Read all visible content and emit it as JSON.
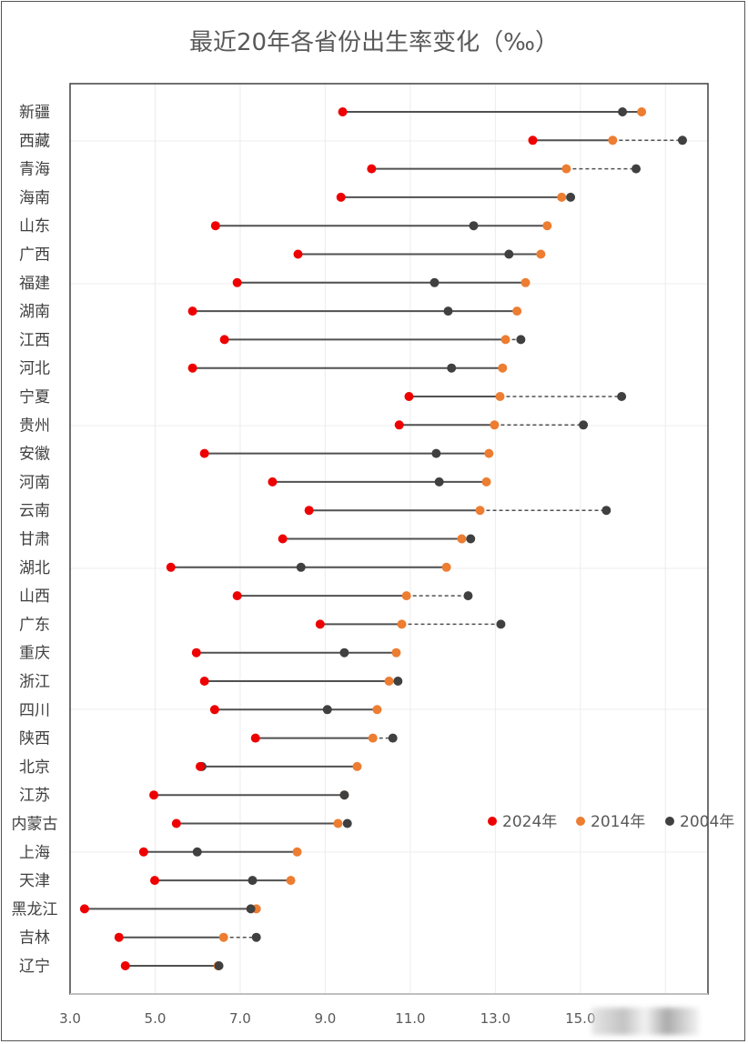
{
  "chart_data": {
    "type": "dot-range",
    "title": "最近20年各省份出生率变化（‰）",
    "xlim": [
      3.0,
      18.0
    ],
    "x_ticks": [
      "3.0",
      "5.0",
      "7.0",
      "9.0",
      "11.0",
      "13.0",
      "15.0"
    ],
    "grid": true,
    "legend_placement": "right",
    "colors": {
      "2024年": "#ee0000",
      "2014年": "#ed7d31",
      "2004年": "#404040",
      "line": "#505050"
    },
    "legend": [
      "2024年",
      "2014年",
      "2004年"
    ],
    "categories": [
      "新疆",
      "西藏",
      "青海",
      "海南",
      "山东",
      "广西",
      "福建",
      "湖南",
      "江西",
      "河北",
      "宁夏",
      "贵州",
      "安徽",
      "河南",
      "云南",
      "甘肃",
      "湖北",
      "山西",
      "广东",
      "重庆",
      "浙江",
      "四川",
      "陕西",
      "北京",
      "江苏",
      "内蒙古",
      "上海",
      "天津",
      "黑龙江",
      "吉林",
      "辽宁"
    ],
    "series": [
      {
        "name": "2024年",
        "values": [
          9.41,
          13.88,
          10.09,
          9.37,
          6.42,
          8.36,
          6.93,
          5.88,
          6.63,
          5.88,
          10.97,
          10.74,
          6.16,
          7.76,
          8.62,
          8.0,
          5.37,
          6.93,
          8.88,
          5.97,
          6.16,
          6.4,
          7.36,
          6.06,
          4.97,
          5.5,
          4.73,
          4.99,
          3.34,
          4.15,
          4.3
        ]
      },
      {
        "name": "2014年",
        "values": [
          16.44,
          15.76,
          14.67,
          14.56,
          14.22,
          14.07,
          13.71,
          13.51,
          13.24,
          13.17,
          13.11,
          12.98,
          12.85,
          12.79,
          12.64,
          12.21,
          11.85,
          10.91,
          10.8,
          10.67,
          10.5,
          10.22,
          10.12,
          9.75,
          9.45,
          9.3,
          8.34,
          8.19,
          7.38,
          6.61,
          6.48
        ]
      },
      {
        "name": "2004年",
        "values": [
          15.99,
          17.4,
          16.31,
          14.77,
          12.49,
          13.32,
          11.57,
          11.89,
          13.6,
          11.97,
          15.97,
          15.07,
          11.61,
          11.68,
          15.61,
          12.42,
          8.43,
          12.36,
          13.13,
          9.45,
          10.71,
          9.05,
          10.59,
          6.1,
          9.45,
          9.52,
          5.99,
          7.29,
          7.25,
          7.38,
          6.5
        ]
      }
    ]
  }
}
